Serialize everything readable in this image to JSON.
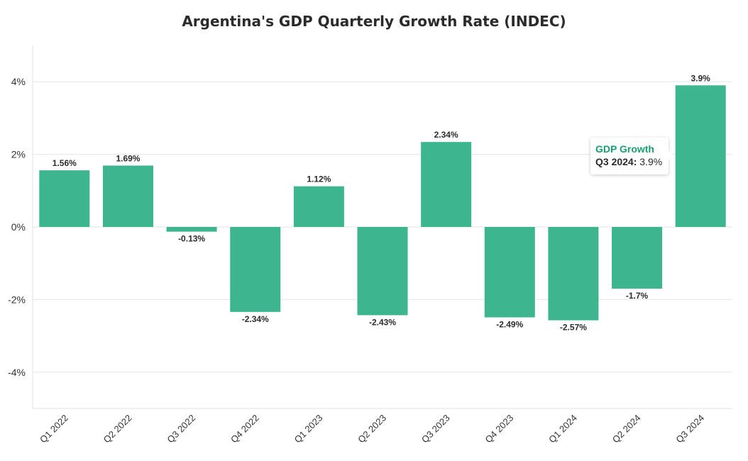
{
  "chart_data": {
    "type": "bar",
    "title": "Argentina's GDP Quarterly Growth Rate (INDEC)",
    "xlabel": "",
    "ylabel": "",
    "series": [
      {
        "name": "GDP Growth",
        "values": [
          1.56,
          1.69,
          -0.13,
          -2.34,
          1.12,
          -2.43,
          2.34,
          -2.49,
          -2.57,
          -1.7,
          3.9
        ]
      }
    ],
    "categories": [
      "Q1 2022",
      "Q2 2022",
      "Q3 2022",
      "Q4 2022",
      "Q1 2023",
      "Q2 2023",
      "Q3 2023",
      "Q4 2023",
      "Q1 2024",
      "Q2 2024",
      "Q3 2024"
    ],
    "data_labels": [
      "1.56%",
      "1.69%",
      "-0.13%",
      "-2.34%",
      "1.12%",
      "-2.43%",
      "2.34%",
      "-2.49%",
      "-2.57%",
      "-1.7%",
      "3.9%"
    ],
    "ylim": [
      -5,
      5
    ],
    "yticks": [
      4,
      2,
      0,
      -2,
      -4
    ],
    "ytick_labels": [
      "4%",
      "2%",
      "0%",
      "-2%",
      "-4%"
    ],
    "grid": true,
    "bar_color": "#3db68f",
    "tooltip": {
      "series_name": "GDP Growth",
      "category": "Q3 2024:",
      "value": "3.9%"
    }
  }
}
